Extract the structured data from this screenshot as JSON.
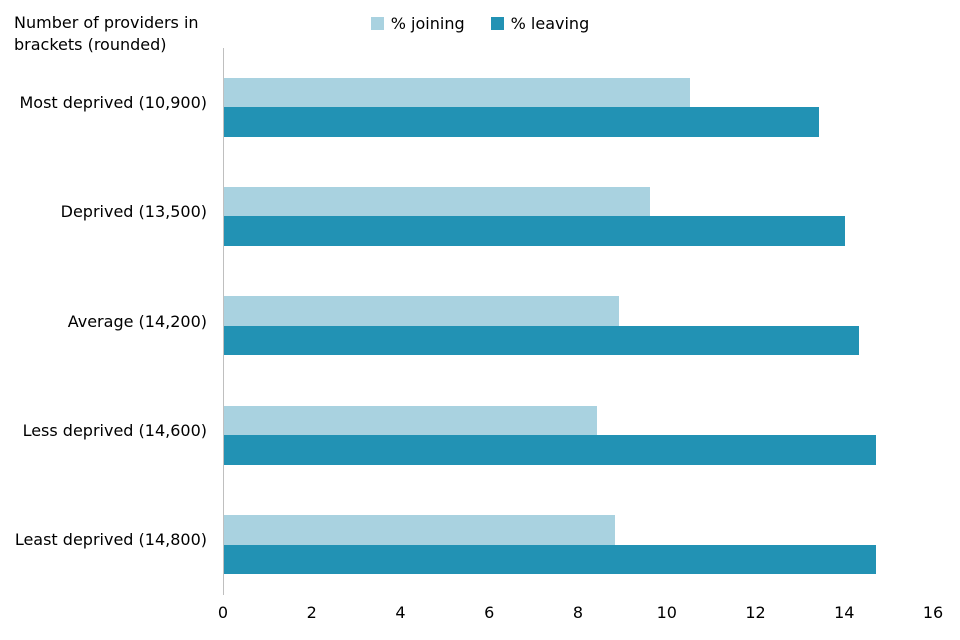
{
  "title": "Number of providers in brackets (rounded)",
  "legend": [
    {
      "label": "% joining",
      "color": "#a9d2e0"
    },
    {
      "label": "% leaving",
      "color": "#2292b4"
    }
  ],
  "chart_data": {
    "type": "bar",
    "orientation": "horizontal",
    "title": "Number of providers in brackets (rounded)",
    "categories": [
      "Most deprived (10,900)",
      "Deprived (13,500)",
      "Average (14,200)",
      "Less deprived (14,600)",
      "Least deprived (14,800)"
    ],
    "series": [
      {
        "name": "% joining",
        "color": "#a9d2e0",
        "values": [
          10.5,
          9.6,
          8.9,
          8.4,
          8.8
        ]
      },
      {
        "name": "% leaving",
        "color": "#2292b4",
        "values": [
          13.4,
          14.0,
          14.3,
          14.7,
          14.7
        ]
      }
    ],
    "xlabel": "",
    "ylabel": "",
    "xlim": [
      0,
      16
    ],
    "x_ticks": [
      0,
      2,
      4,
      6,
      8,
      10,
      12,
      14,
      16
    ],
    "grid": false,
    "legend_position": "top-center",
    "axis_color": "#bfbfbf",
    "text_color": "#000000",
    "background": "#ffffff"
  }
}
